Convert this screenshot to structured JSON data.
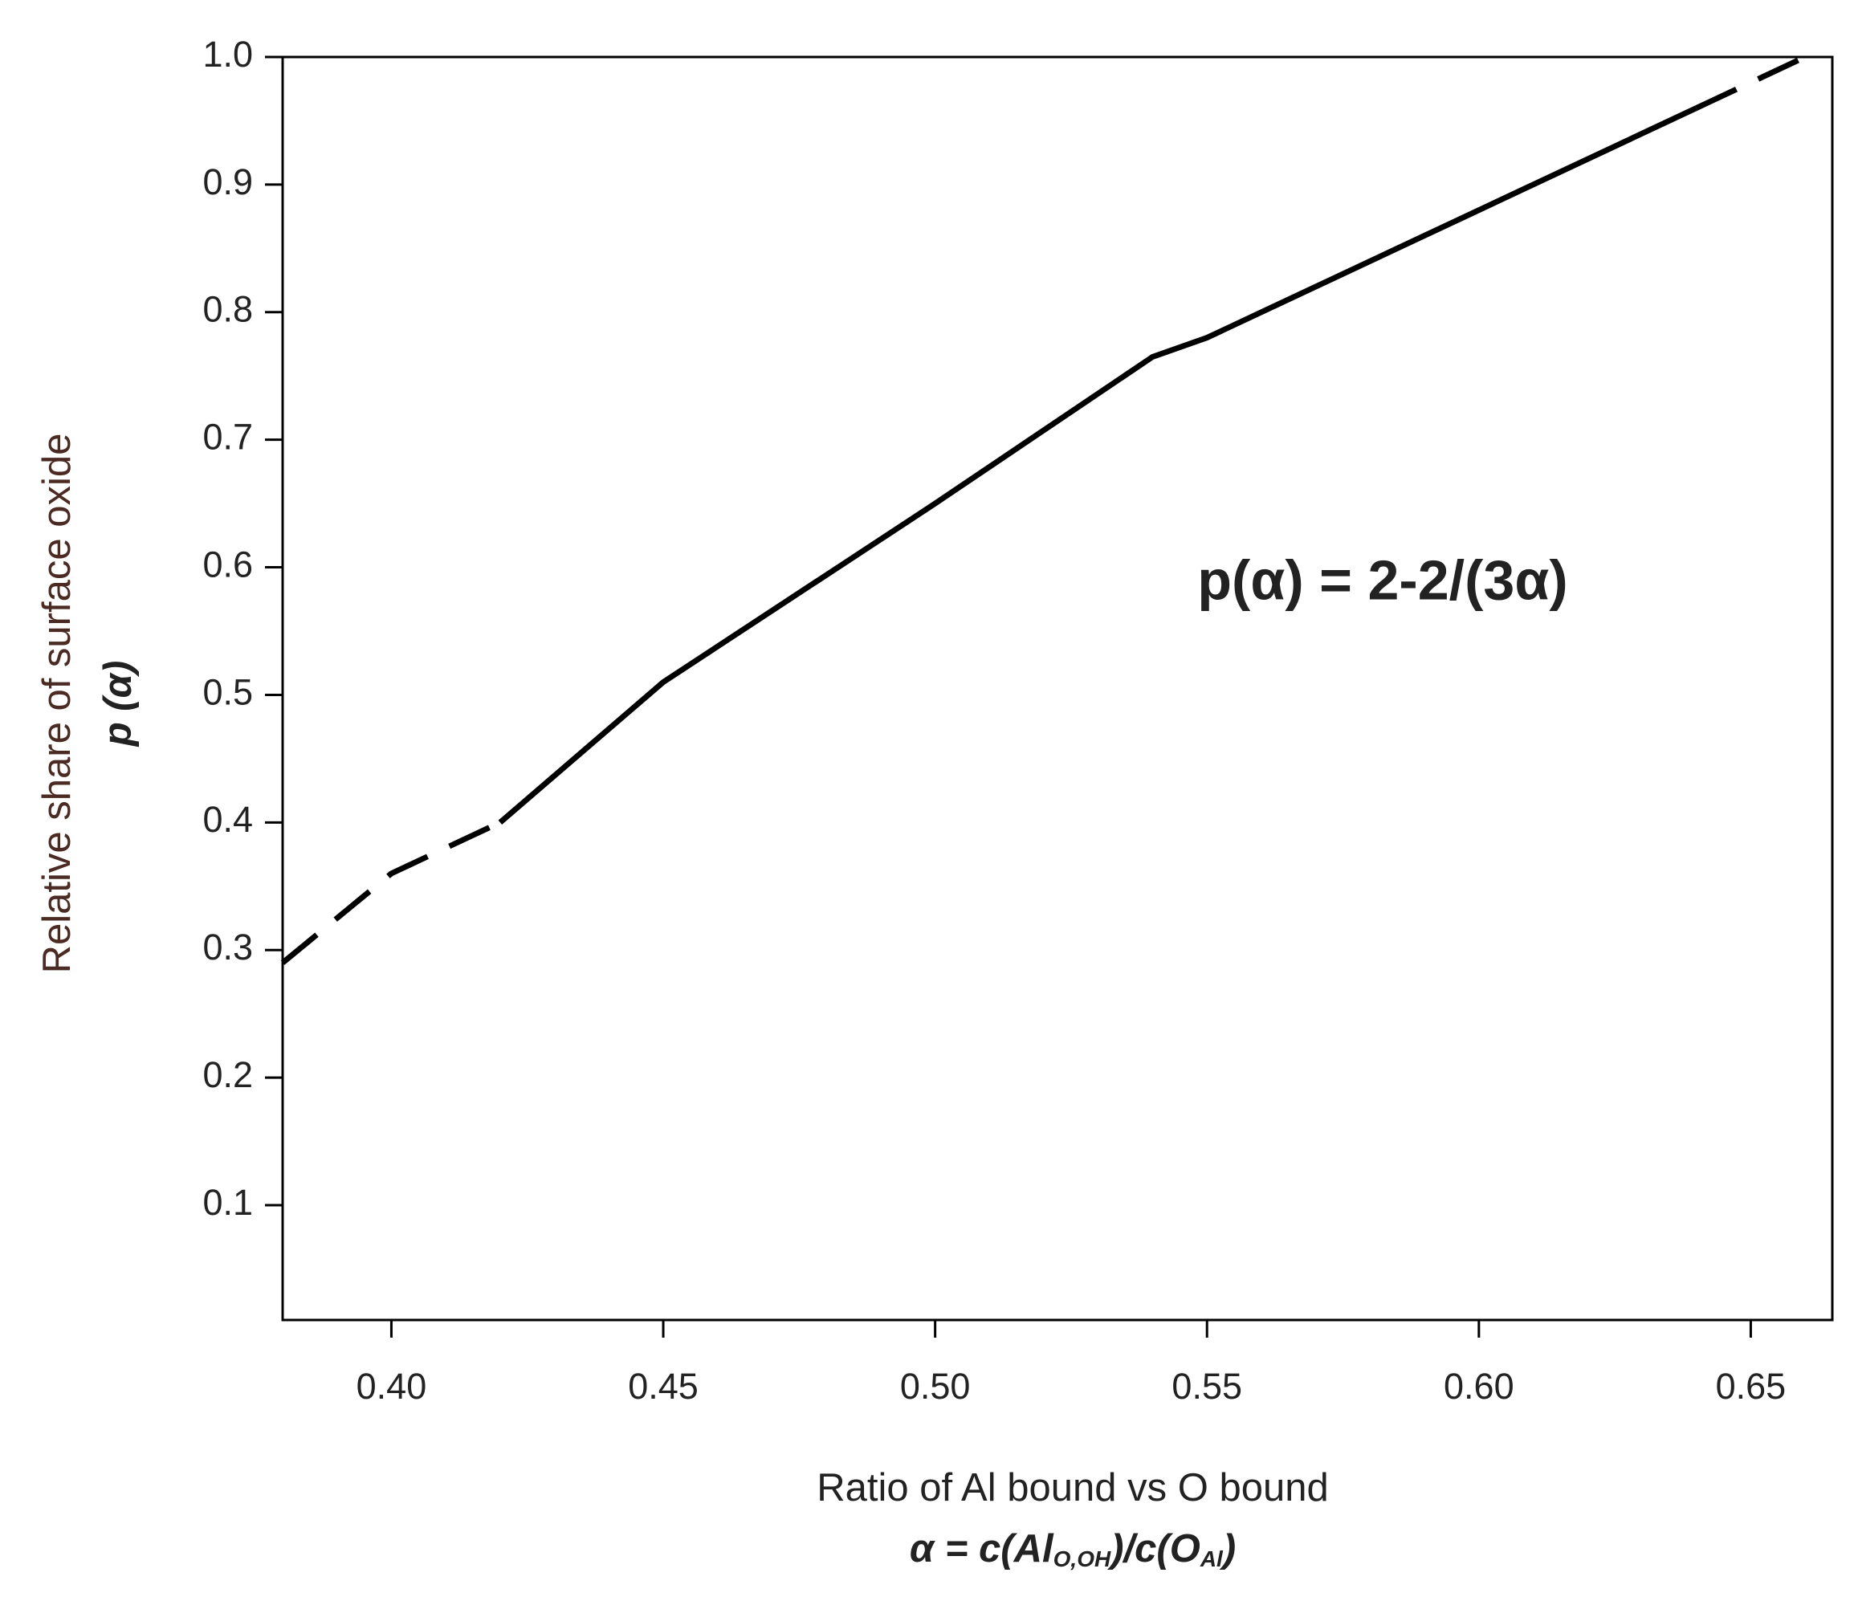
{
  "chart_data": {
    "type": "line",
    "ylabel": "Relative share of surface oxide",
    "ylabel2": "p (α)",
    "xlabel": "Ratio of Al bound vs O bound",
    "xlabel2_parts": [
      "α = c(Al",
      "O,OH",
      ")/c(O",
      "Al",
      ")"
    ],
    "annotation": "p(α) = 2-2/(3α)",
    "x": [
      0.38,
      0.4,
      0.42,
      0.45,
      0.5,
      0.54,
      0.55,
      0.6,
      0.64,
      0.66
    ],
    "series": [
      {
        "color": "#000000",
        "dash": true,
        "values": [
          0.29,
          0.36,
          0.4,
          null,
          null,
          null,
          null,
          null,
          0.96,
          1.0
        ]
      },
      {
        "color": "#000000",
        "dash": false,
        "values": [
          null,
          null,
          0.4,
          0.51,
          0.65,
          0.765,
          0.78,
          0.88,
          0.96,
          null
        ]
      }
    ],
    "xlim": [
      0.38,
      0.665
    ],
    "ylim": [
      0.01,
      1.0
    ],
    "xticks": [
      {
        "value": 0.4,
        "label": "0.40"
      },
      {
        "value": 0.45,
        "label": "0.45"
      },
      {
        "value": 0.5,
        "label": "0.50"
      },
      {
        "value": 0.55,
        "label": "0.55"
      },
      {
        "value": 0.6,
        "label": "0.60"
      },
      {
        "value": 0.65,
        "label": "0.65"
      }
    ],
    "yticks": [
      0.1,
      0.2,
      0.3,
      0.4,
      0.5,
      0.6,
      0.7,
      0.8,
      0.9,
      {
        "value": 1.0,
        "label": "1.0"
      }
    ],
    "grid": false
  }
}
